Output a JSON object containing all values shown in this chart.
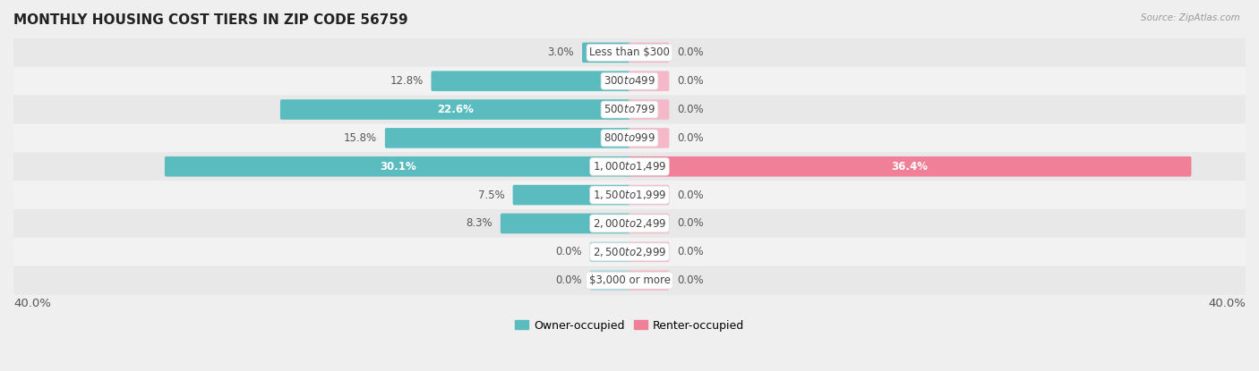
{
  "title": "MONTHLY HOUSING COST TIERS IN ZIP CODE 56759",
  "source": "Source: ZipAtlas.com",
  "categories": [
    "Less than $300",
    "$300 to $499",
    "$500 to $799",
    "$800 to $999",
    "$1,000 to $1,499",
    "$1,500 to $1,999",
    "$2,000 to $2,499",
    "$2,500 to $2,999",
    "$3,000 or more"
  ],
  "owner_values": [
    3.0,
    12.8,
    22.6,
    15.8,
    30.1,
    7.5,
    8.3,
    0.0,
    0.0
  ],
  "renter_values": [
    0.0,
    0.0,
    0.0,
    0.0,
    36.4,
    0.0,
    0.0,
    0.0,
    0.0
  ],
  "owner_color": "#5bbcbf",
  "renter_color": "#f08098",
  "owner_color_light": "#a8d8da",
  "renter_color_light": "#f5b8c8",
  "bg_color": "#efefef",
  "row_colors": [
    "#e8e8e8",
    "#f2f2f2"
  ],
  "xlim": 40.0,
  "min_stub": 2.5,
  "label_threshold": 20.0,
  "title_fontsize": 11,
  "axis_fontsize": 9.5,
  "label_fontsize": 8.5,
  "category_fontsize": 8.5,
  "legend_labels": [
    "Owner-occupied",
    "Renter-occupied"
  ]
}
